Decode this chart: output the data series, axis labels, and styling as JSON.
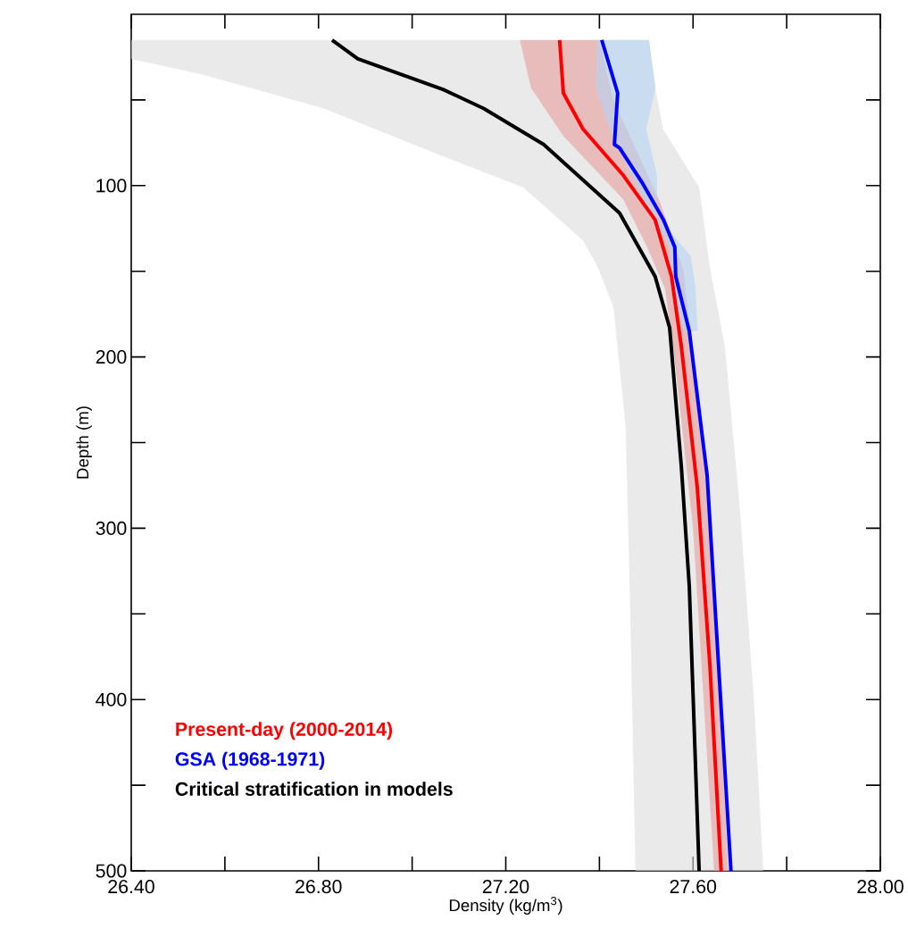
{
  "chart_data": {
    "type": "line",
    "xlabel": "Density (kg/m$^{3}$)",
    "ylabel": "Depth (m)",
    "xlim": [
      26.4,
      28.0
    ],
    "ylim": [
      500,
      0
    ],
    "xticks": [
      {
        "value": 26.4,
        "label": "26.40"
      },
      {
        "value": 26.6,
        "label": null
      },
      {
        "value": 26.8,
        "label": "26.80"
      },
      {
        "value": 27.0,
        "label": null
      },
      {
        "value": 27.2,
        "label": "27.20"
      },
      {
        "value": 27.4,
        "label": null
      },
      {
        "value": 27.6,
        "label": "27.60"
      },
      {
        "value": 27.8,
        "label": null
      },
      {
        "value": 28.0,
        "label": "28.00"
      }
    ],
    "yticks": [
      {
        "value": 50,
        "label": null
      },
      100,
      {
        "value": 150,
        "label": null
      },
      200,
      {
        "value": 250,
        "label": null
      },
      300,
      {
        "value": 350,
        "label": null
      },
      400,
      {
        "value": 450,
        "label": null
      },
      500
    ],
    "legend": "bottom left",
    "grid": false,
    "series": [
      {
        "type": "area",
        "color": "#dcdcdc",
        "x": [
          26.4,
          26.4,
          26.55,
          26.812,
          27.067,
          27.237,
          27.365,
          27.397,
          27.43,
          27.456,
          27.466,
          27.477,
          27.75,
          27.73,
          27.7,
          27.668,
          27.636,
          27.613,
          27.536,
          27.52,
          27.506
        ],
        "values": [
          15,
          26,
          35,
          55,
          83,
          101,
          132,
          148,
          171,
          241,
          350,
          500,
          500,
          400,
          288,
          194,
          148,
          101,
          67,
          44,
          15
        ]
      },
      {
        "type": "area",
        "color": "#e89c9c",
        "x": [
          27.23,
          27.254,
          27.323,
          27.451,
          27.502,
          27.54,
          27.56,
          27.6,
          27.645,
          27.675,
          27.64,
          27.6,
          27.58,
          27.53,
          27.48,
          27.43,
          27.4
        ],
        "values": [
          15,
          43,
          71,
          108,
          136,
          160,
          200,
          300,
          500,
          500,
          300,
          200,
          150,
          110,
          80,
          50,
          15
        ]
      },
      {
        "type": "area",
        "color": "#b4d4f4",
        "x": [
          27.395,
          27.392,
          27.43,
          27.49,
          27.55,
          27.555,
          27.58,
          27.61,
          27.605,
          27.595,
          27.523,
          27.523,
          27.5,
          27.52,
          27.506
        ],
        "values": [
          15,
          43,
          73,
          106,
          136,
          160,
          185,
          185,
          159,
          141,
          118,
          94,
          67,
          43,
          15
        ]
      },
      {
        "name": "Present-day (2000-2014)",
        "color": "#ff0000",
        "x": [
          27.315,
          27.323,
          27.365,
          27.451,
          27.519,
          27.554,
          27.575,
          27.609,
          27.636,
          27.66
        ],
        "values": [
          15,
          46,
          67,
          94,
          120,
          153,
          194,
          276,
          380,
          500
        ]
      },
      {
        "name": "GSA (1968-1971)",
        "color": "#0000ff",
        "x": [
          27.405,
          27.439,
          27.432,
          27.443,
          27.493,
          27.537,
          27.561,
          27.563,
          27.592,
          27.63,
          27.681
        ],
        "values": [
          15,
          46,
          76,
          78,
          99,
          120,
          136,
          153,
          185,
          269,
          500
        ]
      },
      {
        "name": "Critical stratification in models",
        "color": "#000000",
        "x": [
          26.829,
          26.884,
          27.067,
          27.153,
          27.281,
          27.443,
          27.519,
          27.55,
          27.575,
          27.592,
          27.613
        ],
        "values": [
          15,
          26,
          44,
          55,
          76,
          116,
          153,
          183,
          264,
          334,
          500
        ]
      }
    ]
  }
}
